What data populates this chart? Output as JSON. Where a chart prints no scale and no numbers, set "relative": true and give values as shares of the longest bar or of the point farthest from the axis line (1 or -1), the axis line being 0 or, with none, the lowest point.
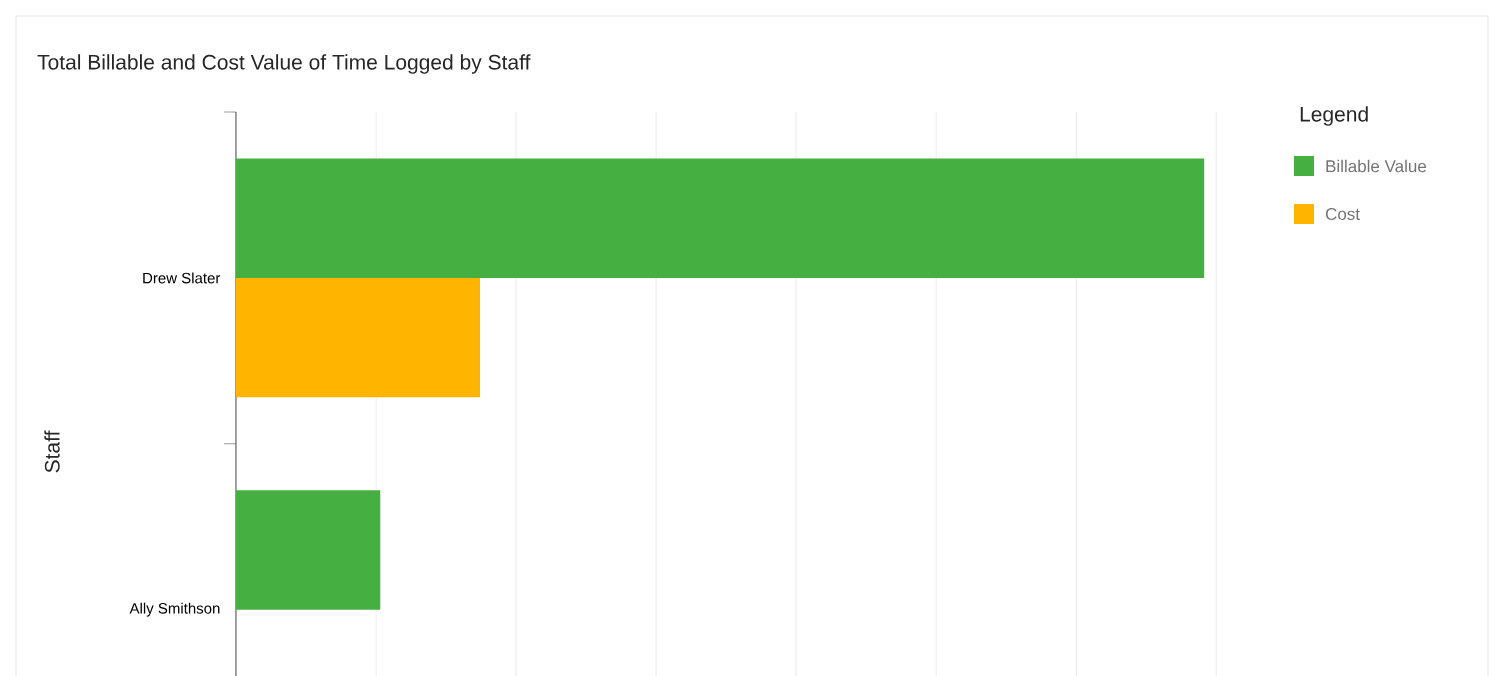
{
  "chart_data": {
    "type": "bar",
    "orientation": "horizontal",
    "relative": true,
    "title": "Total Billable and Cost Value of Time Logged by Staff",
    "ylabel": "Staff",
    "legend_title": "Legend",
    "categories": [
      "Drew Slater",
      "Ally Smithson"
    ],
    "series": [
      {
        "name": "Billable Value",
        "color": "#46af41",
        "values": [
          1,
          0.149
        ]
      },
      {
        "name": "Cost",
        "color": "#ffb500",
        "values": [
          0.252,
          null
        ]
      }
    ],
    "grid": "x",
    "legend": "top right",
    "tick_labels": "y"
  }
}
